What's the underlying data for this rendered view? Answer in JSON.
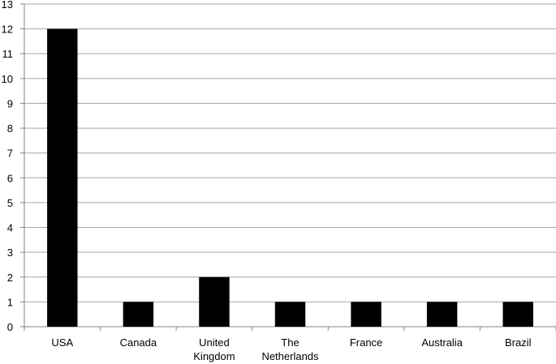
{
  "chart_data": {
    "type": "bar",
    "categories": [
      "USA",
      "Canada",
      "United Kingdom",
      "The Netherlands",
      "France",
      "Australia",
      "Brazil"
    ],
    "values": [
      12,
      1,
      2,
      1,
      1,
      1,
      1
    ],
    "color": "#000000",
    "ylim": [
      0,
      13
    ],
    "yticks": [
      0,
      1,
      2,
      3,
      4,
      5,
      6,
      7,
      8,
      9,
      10,
      11,
      12,
      13
    ],
    "grid": true
  }
}
